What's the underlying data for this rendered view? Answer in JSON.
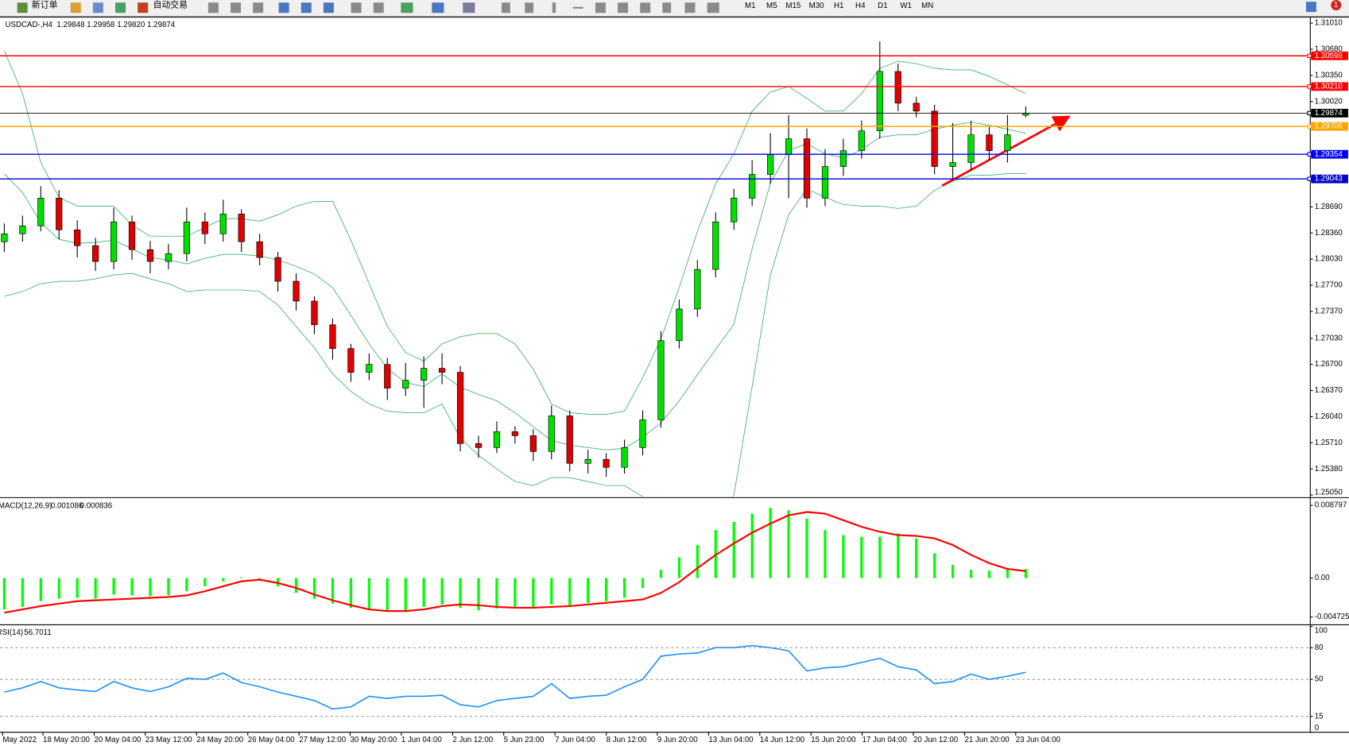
{
  "toolbar": {
    "buttons": [
      "新订单",
      "自动交易"
    ],
    "timeframes": [
      "M1",
      "M5",
      "M15",
      "M30",
      "H1",
      "H4",
      "D1",
      "W1",
      "MN"
    ],
    "badge": "1"
  },
  "chart_data": [
    {
      "type": "candlestick",
      "title": "USDCAD-,H4",
      "header_values": [
        "1.29848",
        "1.29958",
        "1.29820",
        "1.29874"
      ],
      "up_color": "#00e000",
      "down_color": "#e00000",
      "open": [
        1.2825,
        1.2835,
        1.2845,
        1.288,
        1.284,
        1.282,
        1.28,
        1.285,
        1.2815,
        1.28,
        1.281,
        1.285,
        1.2835,
        1.286,
        1.2825,
        1.2805,
        1.2775,
        1.275,
        1.272,
        1.269,
        1.266,
        1.267,
        1.264,
        1.265,
        1.2665,
        1.266,
        1.257,
        1.2565,
        1.2585,
        1.258,
        1.256,
        1.2605,
        1.2545,
        1.255,
        1.254,
        1.2565,
        1.26,
        1.27,
        1.274,
        1.279,
        1.285,
        1.288,
        1.291,
        1.2935,
        1.2955,
        1.288,
        1.292,
        1.294,
        1.2965,
        1.304,
        1.3,
        1.299,
        1.292,
        1.2925,
        1.296,
        1.294,
        1.29848
      ],
      "high": [
        1.2848,
        1.2858,
        1.2895,
        1.289,
        1.2852,
        1.283,
        1.2868,
        1.2858,
        1.2826,
        1.2822,
        1.2868,
        1.2862,
        1.2878,
        1.2866,
        1.2835,
        1.2812,
        1.2785,
        1.2756,
        1.2728,
        1.2696,
        1.2684,
        1.2678,
        1.2672,
        1.268,
        1.2684,
        1.2668,
        1.258,
        1.2598,
        1.2592,
        1.2588,
        1.2618,
        1.2612,
        1.2562,
        1.2558,
        1.2575,
        1.2612,
        1.2712,
        1.2752,
        1.2802,
        1.2862,
        1.2892,
        1.2928,
        1.2962,
        1.2985,
        1.2968,
        1.2942,
        1.2955,
        1.2978,
        1.3078,
        1.305,
        1.3008,
        1.2998,
        1.2975,
        1.2978,
        1.297,
        1.2985,
        1.29958
      ],
      "low": [
        1.2812,
        1.2825,
        1.2838,
        1.2828,
        1.2805,
        1.2788,
        1.279,
        1.2802,
        1.2785,
        1.279,
        1.28,
        1.2822,
        1.2825,
        1.2812,
        1.2795,
        1.2762,
        1.2738,
        1.2708,
        1.2676,
        1.2648,
        1.265,
        1.2625,
        1.263,
        1.2615,
        1.2645,
        1.256,
        1.2552,
        1.2558,
        1.257,
        1.2548,
        1.255,
        1.2535,
        1.2532,
        1.2528,
        1.2532,
        1.2555,
        1.259,
        1.269,
        1.273,
        1.278,
        1.284,
        1.287,
        1.2898,
        1.288,
        1.2868,
        1.287,
        1.2908,
        1.293,
        1.2955,
        1.299,
        1.2982,
        1.291,
        1.2905,
        1.2915,
        1.2928,
        1.2925,
        1.2982
      ],
      "close": [
        1.2835,
        1.2845,
        1.288,
        1.284,
        1.282,
        1.28,
        1.285,
        1.2815,
        1.28,
        1.281,
        1.285,
        1.2835,
        1.286,
        1.2825,
        1.2805,
        1.2775,
        1.275,
        1.272,
        1.269,
        1.266,
        1.267,
        1.264,
        1.265,
        1.2665,
        1.266,
        1.257,
        1.2565,
        1.2585,
        1.258,
        1.256,
        1.2605,
        1.2545,
        1.255,
        1.254,
        1.2565,
        1.26,
        1.27,
        1.274,
        1.279,
        1.285,
        1.288,
        1.291,
        1.2935,
        1.2955,
        1.288,
        1.292,
        1.294,
        1.2965,
        1.304,
        1.3,
        1.299,
        1.292,
        1.2925,
        1.296,
        1.294,
        1.296,
        1.29874
      ],
      "overlays": [
        {
          "color": "#3cb371",
          "values": [
            1.3066,
            1.3012,
            1.2925,
            1.2881,
            1.287,
            1.287,
            1.287,
            1.2846,
            1.2832,
            1.2832,
            1.2832,
            1.2843,
            1.2854,
            1.2854,
            1.2851,
            1.2859,
            1.287,
            1.2876,
            1.2876,
            1.2827,
            1.2772,
            1.2718,
            1.2685,
            1.2674,
            1.2696,
            1.2705,
            1.2709,
            1.2709,
            1.2696,
            1.2664,
            1.262,
            1.2609,
            1.2607,
            1.2607,
            1.2611,
            1.2653,
            1.2702,
            1.2767,
            1.2838,
            1.2898,
            1.2936,
            1.299,
            1.3014,
            1.3021,
            1.3006,
            1.299,
            1.299,
            1.3012,
            1.3044,
            1.3053,
            1.305,
            1.3044,
            1.3042,
            1.3042,
            1.3034,
            1.3023,
            1.3012
          ]
        },
        {
          "color": "#3cb371",
          "values": [
            1.2911,
            1.2887,
            1.2849,
            1.2828,
            1.2823,
            1.2824,
            1.2827,
            1.2816,
            1.2805,
            1.2802,
            1.2797,
            1.2804,
            1.2809,
            1.2809,
            1.2807,
            1.2802,
            1.2794,
            1.2784,
            1.2767,
            1.2732,
            1.2696,
            1.2665,
            1.2647,
            1.2642,
            1.2658,
            1.2641,
            1.2632,
            1.2624,
            1.2609,
            1.2591,
            1.2574,
            1.2568,
            1.2565,
            1.2562,
            1.2564,
            1.2578,
            1.2596,
            1.2624,
            1.2657,
            1.2689,
            1.2721,
            1.2816,
            1.2899,
            1.294,
            1.2949,
            1.2936,
            1.2931,
            1.2941,
            1.2957,
            1.296,
            1.296,
            1.2967,
            1.2972,
            1.2976,
            1.2972,
            1.2967,
            1.2962
          ]
        },
        {
          "color": "#3cb371",
          "values": [
            1.2756,
            1.2762,
            1.2772,
            1.2775,
            1.2775,
            1.2778,
            1.2783,
            1.2785,
            1.2778,
            1.2772,
            1.2762,
            1.2764,
            1.2764,
            1.2764,
            1.2762,
            1.2745,
            1.2718,
            1.2691,
            1.2658,
            1.2636,
            1.262,
            1.2611,
            1.2609,
            1.2609,
            1.262,
            1.2577,
            1.2555,
            1.2538,
            1.2522,
            1.2517,
            1.2527,
            1.2527,
            1.2522,
            1.2517,
            1.2517,
            1.2503,
            1.249,
            1.248,
            1.2475,
            1.248,
            1.2505,
            1.2642,
            1.2783,
            1.2859,
            1.2892,
            1.2881,
            1.2872,
            1.287,
            1.287,
            1.2867,
            1.287,
            1.289,
            1.2901,
            1.2909,
            1.2909,
            1.2911,
            1.2911
          ]
        }
      ],
      "levels": [
        {
          "value": 1.30598,
          "color": "#ff0000"
        },
        {
          "value": 1.3021,
          "label": "1.30210",
          "color": "#ff0000"
        },
        {
          "value": 1.29874,
          "color": "#000000"
        },
        {
          "value": 1.29706,
          "color": "#ffa500"
        },
        {
          "value": 1.29354,
          "color": "#0000ff"
        },
        {
          "value": 1.29043,
          "color": "#0000cc"
        }
      ],
      "ylim": [
        1.25028,
        1.31075
      ],
      "yticks": [
        {
          "value": 1.3101,
          "label": "1.31010"
        },
        {
          "value": 1.3068,
          "label": "1.30680"
        },
        {
          "value": 1.3035,
          "label": "1.30350"
        },
        {
          "value": 1.3002,
          "label": "1.30020"
        },
        {
          "value": 1.2869,
          "label": "1.28690"
        },
        {
          "value": 1.2836,
          "label": "1.28360"
        },
        {
          "value": 1.2803,
          "label": "1.28030"
        },
        {
          "value": 1.277,
          "label": "1.27700"
        },
        {
          "value": 1.2737,
          "label": "1.27370"
        },
        {
          "value": 1.2703,
          "label": "1.27030"
        },
        {
          "value": 1.267,
          "label": "1.26700"
        },
        {
          "value": 1.2637,
          "label": "1.26370"
        },
        {
          "value": 1.2604,
          "label": "1.26040"
        },
        {
          "value": 1.2571,
          "label": "1.25710"
        },
        {
          "value": 1.2538,
          "label": "1.25380"
        },
        {
          "value": 1.2505,
          "label": "1.25050"
        }
      ],
      "xlim": [
        -0.236,
        71.6
      ],
      "xticks": [
        {
          "value": -0.09,
          "label": "May 2022"
        },
        {
          "value": 2.12,
          "label": "18 May 20:00"
        },
        {
          "value": 4.93,
          "label": "20 May 04:00"
        },
        {
          "value": 7.73,
          "label": "23 May 12:00"
        },
        {
          "value": 10.54,
          "label": "24 May 20:00"
        },
        {
          "value": 13.35,
          "label": "26 May 04:00"
        },
        {
          "value": 16.16,
          "label": "27 May 12:00"
        },
        {
          "value": 18.96,
          "label": "30 May 20:00"
        },
        {
          "value": 21.77,
          "label": "1 Jun 04:00"
        },
        {
          "value": 24.58,
          "label": "2 Jun 12:00"
        },
        {
          "value": 27.38,
          "label": "5 Jun 23:00"
        },
        {
          "value": 30.19,
          "label": "7 Jun 04:00"
        },
        {
          "value": 33.0,
          "label": "8 Jun 12:00"
        },
        {
          "value": 35.8,
          "label": "9 Jun 20:00"
        },
        {
          "value": 38.61,
          "label": "13 Jun 04:00"
        },
        {
          "value": 41.42,
          "label": "14 Jun 12:00"
        },
        {
          "value": 44.23,
          "label": "15 Jun 20:00"
        },
        {
          "value": 47.03,
          "label": "17 Jun 04:00"
        },
        {
          "value": 49.84,
          "label": "20 Jun 12:00"
        },
        {
          "value": 52.65,
          "label": "21 Jun 20:00"
        },
        {
          "value": 55.45,
          "label": "23 Jun 04:00"
        }
      ]
    },
    {
      "type": "macd",
      "title": "MACD(12,26,9)",
      "series": [
        {
          "kind": "histogram",
          "color": "#00ff00",
          "values": [
            -0.0038,
            -0.0035,
            -0.0028,
            -0.0025,
            -0.0024,
            -0.0025,
            -0.002,
            -0.0021,
            -0.0022,
            -0.0021,
            -0.0016,
            -0.001,
            -0.0004,
            0.0001,
            -0.0002,
            -0.001,
            -0.0018,
            -0.0025,
            -0.0031,
            -0.0036,
            -0.0038,
            -0.004,
            -0.0039,
            -0.0035,
            -0.0032,
            -0.0036,
            -0.0039,
            -0.0037,
            -0.0035,
            -0.0036,
            -0.0032,
            -0.0033,
            -0.003,
            -0.0028,
            -0.0024,
            -0.0012,
            0.001,
            0.0025,
            0.004,
            0.0058,
            0.0068,
            0.0078,
            0.0085,
            0.0082,
            0.0072,
            0.0058,
            0.0052,
            0.005,
            0.005,
            0.0054,
            0.0048,
            0.003,
            0.0016,
            0.001,
            0.0009,
            0.001,
            0.001086
          ]
        },
        {
          "kind": "line",
          "color": "#ff0000",
          "values": [
            -0.0042,
            -0.0038,
            -0.0034,
            -0.0031,
            -0.0028,
            -0.0027,
            -0.0026,
            -0.0025,
            -0.0024,
            -0.0023,
            -0.0021,
            -0.0016,
            -0.001,
            -0.0004,
            -0.0002,
            -0.0006,
            -0.0012,
            -0.002,
            -0.0027,
            -0.0033,
            -0.0038,
            -0.004,
            -0.004,
            -0.0038,
            -0.0034,
            -0.0032,
            -0.0033,
            -0.0035,
            -0.0036,
            -0.0036,
            -0.0035,
            -0.0034,
            -0.0032,
            -0.003,
            -0.0028,
            -0.0026,
            -0.0018,
            -0.0005,
            0.0012,
            0.0028,
            0.0042,
            0.0055,
            0.0066,
            0.0076,
            0.008,
            0.0078,
            0.007,
            0.0062,
            0.0056,
            0.0052,
            0.0051,
            0.0048,
            0.004,
            0.0028,
            0.0018,
            0.0011,
            0.000836
          ]
        }
      ],
      "ylim": [
        -0.00546,
        0.00953
      ],
      "yticks": [
        0.008797,
        {
          "value": 0,
          "label": "0.00"
        },
        -0.004725
      ]
    },
    {
      "type": "line",
      "title": "RSI(14)",
      "color": "#1e90ff",
      "values": [
        38,
        42,
        48,
        42,
        40,
        38.5,
        48,
        42,
        38.5,
        43,
        51,
        50,
        56,
        47,
        43,
        38,
        34,
        30,
        22,
        24,
        34,
        32,
        34,
        34,
        35,
        26,
        24,
        30,
        32,
        34,
        46,
        32,
        34,
        35,
        43,
        50,
        72,
        74,
        75,
        80,
        80,
        82,
        80,
        77,
        58,
        61,
        62,
        66,
        70,
        62,
        59,
        46,
        48,
        55,
        50,
        53,
        56.7011
      ],
      "ylim": [
        0,
        100
      ],
      "yticks": [
        100,
        80,
        50,
        15,
        0
      ],
      "grid": true
    }
  ]
}
